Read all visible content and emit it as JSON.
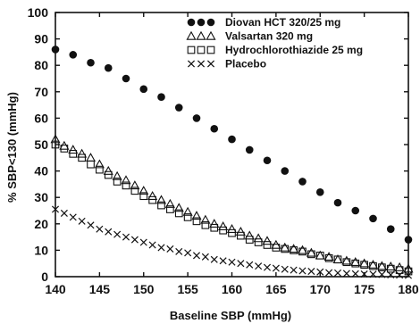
{
  "chart_data": {
    "type": "scatter",
    "xlabel": "Baseline SBP (mmHg)",
    "ylabel": "% SBP<130 (mmHg)",
    "xlim": [
      140,
      180
    ],
    "ylim": [
      0,
      100
    ],
    "xticks": [
      140,
      145,
      150,
      155,
      160,
      165,
      170,
      175,
      180
    ],
    "yticks": [
      0,
      10,
      20,
      30,
      40,
      50,
      60,
      70,
      80,
      90,
      100
    ],
    "grid": false,
    "legend_position": "top-right",
    "series": [
      {
        "name": "Diovan HCT 320/25 mg",
        "marker": "filled-circle",
        "x": [
          140,
          142,
          144,
          146,
          148,
          150,
          152,
          154,
          156,
          158,
          160,
          162,
          164,
          166,
          168,
          170,
          172,
          174,
          176,
          178,
          180
        ],
        "y": [
          86,
          84,
          81,
          79,
          75,
          71,
          68,
          64,
          60,
          56,
          52,
          48,
          44,
          40,
          36,
          32,
          28,
          25,
          22,
          18,
          14
        ]
      },
      {
        "name": "Valsartan 320 mg",
        "marker": "open-triangle",
        "x": [
          140,
          141,
          142,
          143,
          144,
          145,
          146,
          147,
          148,
          149,
          150,
          151,
          152,
          153,
          154,
          155,
          156,
          157,
          158,
          159,
          160,
          161,
          162,
          163,
          164,
          165,
          166,
          167,
          168,
          169,
          170,
          171,
          172,
          173,
          174,
          175,
          176,
          177,
          178,
          179,
          180
        ],
        "y": [
          52,
          49.5,
          48,
          46.5,
          45,
          42.5,
          40,
          38,
          36.5,
          34.5,
          32.5,
          30.5,
          29,
          27.5,
          26,
          24.5,
          23,
          21.5,
          20,
          19,
          18,
          17,
          15.5,
          14.5,
          13.5,
          12,
          11,
          10.5,
          10,
          9,
          8,
          7.5,
          6.5,
          6,
          5.5,
          5,
          4.5,
          4,
          3.8,
          3.5,
          3
        ]
      },
      {
        "name": "Hydrochlorothiazide 25 mg",
        "marker": "open-square",
        "x": [
          140,
          141,
          142,
          143,
          144,
          145,
          146,
          147,
          148,
          149,
          150,
          151,
          152,
          153,
          154,
          155,
          156,
          157,
          158,
          159,
          160,
          161,
          162,
          163,
          164,
          165,
          166,
          167,
          168,
          169,
          170,
          171,
          172,
          173,
          174,
          175,
          176,
          177,
          178,
          179,
          180
        ],
        "y": [
          50,
          48.5,
          46.5,
          45,
          42.5,
          40.5,
          38.5,
          36,
          34.5,
          32.5,
          30.5,
          29,
          27,
          25.5,
          24,
          22.5,
          21,
          19.5,
          18.5,
          17.5,
          16.5,
          15.5,
          14,
          13,
          12,
          11,
          10.5,
          10,
          9.5,
          8.5,
          8,
          7,
          6.5,
          5.5,
          5,
          4.5,
          4,
          3.5,
          3,
          2.5,
          2
        ]
      },
      {
        "name": "Placebo",
        "marker": "x",
        "x": [
          140,
          141,
          142,
          143,
          144,
          145,
          146,
          147,
          148,
          149,
          150,
          151,
          152,
          153,
          154,
          155,
          156,
          157,
          158,
          159,
          160,
          161,
          162,
          163,
          164,
          165,
          166,
          167,
          168,
          169,
          170,
          171,
          172,
          173,
          174,
          175,
          176,
          177,
          178,
          179,
          180
        ],
        "y": [
          25.5,
          24,
          22.5,
          21,
          19.5,
          18,
          17,
          16,
          15,
          14,
          13,
          12,
          11,
          10.5,
          9.5,
          9,
          8,
          7.5,
          6.5,
          6,
          5.5,
          5,
          4.5,
          4,
          3.5,
          3.2,
          2.8,
          2.5,
          2.2,
          2,
          1.8,
          1.5,
          1.4,
          1.2,
          1.1,
          1,
          0.9,
          0.8,
          0.7,
          0.6,
          0.5
        ]
      }
    ]
  }
}
